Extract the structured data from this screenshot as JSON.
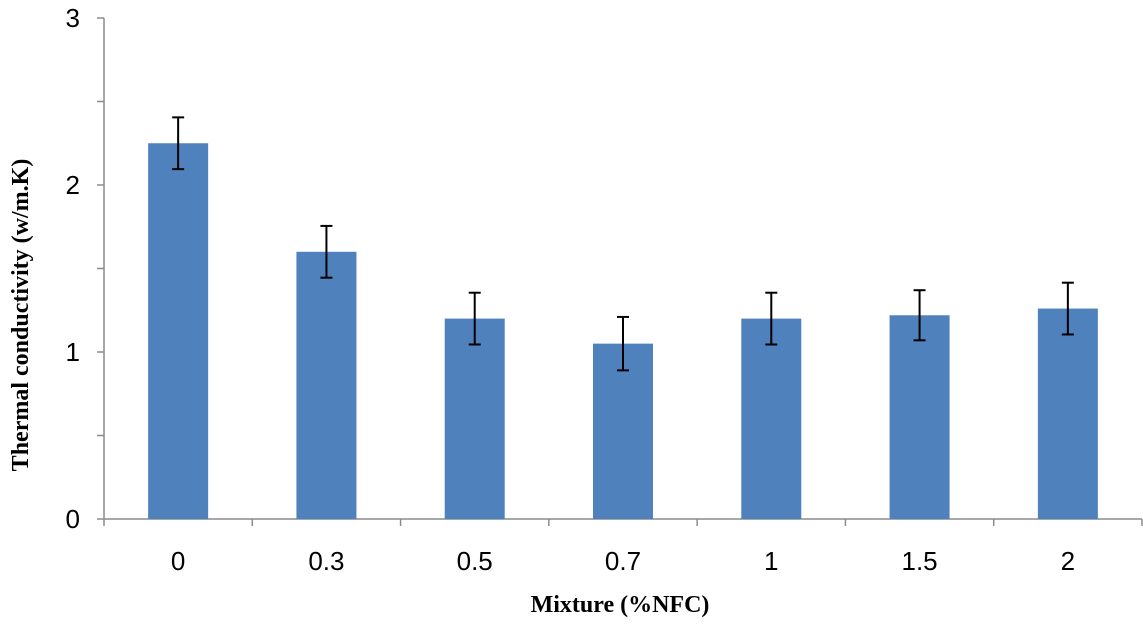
{
  "chart_data": {
    "type": "bar",
    "title": "",
    "xlabel": "Mixture (%NFC)",
    "ylabel": "Thermal conductivity  (w/m.K)",
    "categories": [
      "0",
      "0.3",
      "0.5",
      "0.7",
      "1",
      "1.5",
      "2"
    ],
    "values": [
      2.25,
      1.6,
      1.2,
      1.05,
      1.2,
      1.22,
      1.26
    ],
    "errors": [
      0.155,
      0.155,
      0.155,
      0.16,
      0.155,
      0.15,
      0.155
    ],
    "ylim": [
      0,
      3
    ],
    "yticks": [
      "0",
      "1",
      "2",
      "3"
    ],
    "grid": false,
    "colors": {
      "bar": "#4f81bd",
      "axis": "#8c8c8c",
      "error_bar": "#000000"
    }
  }
}
